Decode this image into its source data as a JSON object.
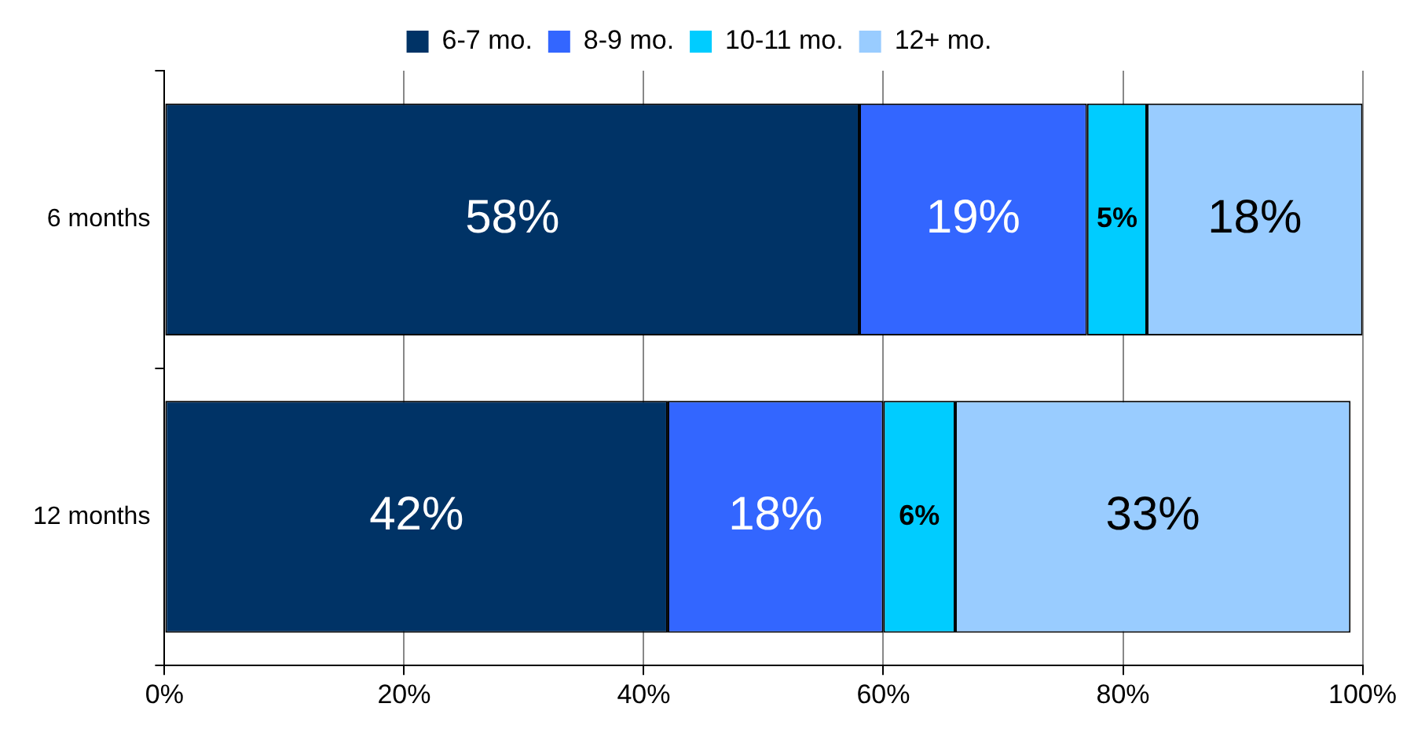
{
  "chart_data": {
    "type": "bar",
    "orientation": "horizontal",
    "stacked": true,
    "categories": [
      "6 months",
      "12 months"
    ],
    "series": [
      {
        "name": "6-7 mo.",
        "color": "#003366",
        "values": [
          58,
          42
        ],
        "value_labels": [
          "58%",
          "42%"
        ]
      },
      {
        "name": "8-9 mo.",
        "color": "#3366ff",
        "values": [
          19,
          18
        ],
        "value_labels": [
          "19%",
          "18%"
        ]
      },
      {
        "name": "10-11 mo.",
        "color": "#00ccff",
        "values": [
          5,
          6
        ],
        "value_labels": [
          "5%",
          "6%"
        ]
      },
      {
        "name": "12+ mo.",
        "color": "#99ccff",
        "values": [
          18,
          33
        ],
        "value_labels": [
          "18%",
          "33%"
        ]
      }
    ],
    "xlim": [
      0,
      100
    ],
    "xticks": [
      {
        "value": 0,
        "label": "0%"
      },
      {
        "value": 20,
        "label": "20%"
      },
      {
        "value": 40,
        "label": "40%"
      },
      {
        "value": 60,
        "label": "60%"
      },
      {
        "value": 80,
        "label": "80%"
      },
      {
        "value": 100,
        "label": "100%"
      }
    ],
    "grid": "x",
    "legend": "top"
  }
}
